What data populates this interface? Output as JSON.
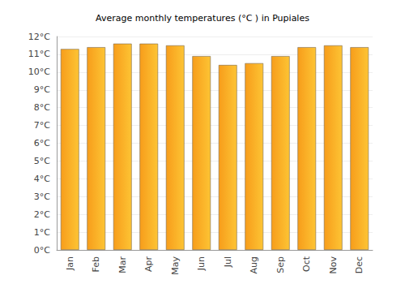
{
  "chart_data": {
    "type": "bar",
    "title": "Average monthly temperatures (°C ) in Pupiales",
    "categories": [
      "Jan",
      "Feb",
      "Mar",
      "Apr",
      "May",
      "Jun",
      "Jul",
      "Aug",
      "Sep",
      "Oct",
      "Nov",
      "Dec"
    ],
    "values": [
      11.3,
      11.4,
      11.6,
      11.6,
      11.5,
      10.9,
      10.4,
      10.5,
      10.9,
      11.4,
      11.5,
      11.4
    ],
    "color": "#fbac2a",
    "ylim": [
      0,
      12
    ],
    "yticks": [
      {
        "value": 0,
        "label": "0°C"
      },
      {
        "value": 1,
        "label": "1°C"
      },
      {
        "value": 2,
        "label": "2°C"
      },
      {
        "value": 3,
        "label": "3°C"
      },
      {
        "value": 4,
        "label": "4°C"
      },
      {
        "value": 5,
        "label": "5°C"
      },
      {
        "value": 6,
        "label": "6°C"
      },
      {
        "value": 7,
        "label": "7°C"
      },
      {
        "value": 8,
        "label": "8°C"
      },
      {
        "value": 9,
        "label": "9°C"
      },
      {
        "value": 10,
        "label": "10°C"
      },
      {
        "value": 11,
        "label": "11°C"
      },
      {
        "value": 12,
        "label": "12°C"
      }
    ],
    "grid": true
  }
}
